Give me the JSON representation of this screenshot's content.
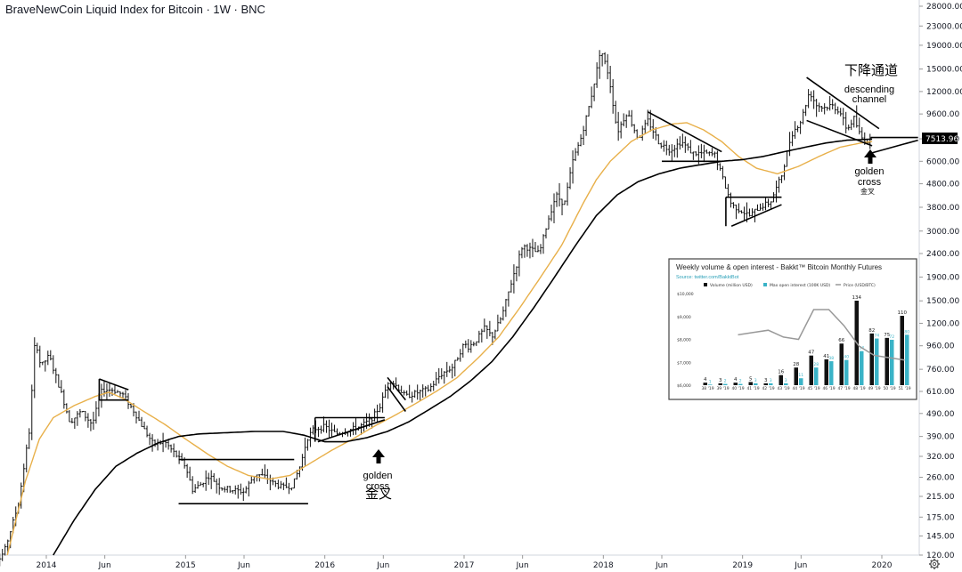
{
  "chart_data": [
    {
      "type": "candlestick",
      "title": "BraveNewCoin Liquid Index for Bitcoin · 1W · BNC",
      "y_scale": "log",
      "y_ticks": [
        120,
        145,
        175,
        215,
        260,
        320,
        390,
        490,
        610,
        760,
        960,
        1200,
        1500,
        1900,
        2400,
        3000,
        3800,
        4800,
        6000,
        7500,
        9600,
        12000,
        15000,
        19000,
        23000,
        28000
      ],
      "y_tick_labels": [
        "120.00",
        "145.00",
        "175.00",
        "215.00",
        "260.00",
        "320.00",
        "390.00",
        "490.00",
        "610.00",
        "760.00",
        "960.00",
        "1200.00",
        "1500.00",
        "1900.00",
        "2400.00",
        "3000.00",
        "3800.00",
        "4800.00",
        "6000.00",
        "7500.00",
        "9600.00",
        "12000.00",
        "15000.00",
        "19000.00",
        "23000.00",
        "28000.00"
      ],
      "x_ticks": [
        {
          "t": 2014.0,
          "label": "2014"
        },
        {
          "t": 2014.42,
          "label": "Jun"
        },
        {
          "t": 2015.0,
          "label": "2015"
        },
        {
          "t": 2015.42,
          "label": "Jun"
        },
        {
          "t": 2016.0,
          "label": "2016"
        },
        {
          "t": 2016.42,
          "label": "Jun"
        },
        {
          "t": 2017.0,
          "label": "2017"
        },
        {
          "t": 2017.42,
          "label": "Jun"
        },
        {
          "t": 2018.0,
          "label": "2018"
        },
        {
          "t": 2018.42,
          "label": "Jun"
        },
        {
          "t": 2019.0,
          "label": "2019"
        },
        {
          "t": 2019.42,
          "label": "Jun"
        },
        {
          "t": 2020.0,
          "label": "2020"
        }
      ],
      "last_price": "7513.96",
      "last_price_value": 7513.96,
      "price_path": [
        [
          2013.55,
          90
        ],
        [
          2013.7,
          125
        ],
        [
          2013.8,
          200
        ],
        [
          2013.88,
          420
        ],
        [
          2013.92,
          1050
        ],
        [
          2013.96,
          780
        ],
        [
          2014.02,
          870
        ],
        [
          2014.1,
          620
        ],
        [
          2014.17,
          450
        ],
        [
          2014.25,
          500
        ],
        [
          2014.33,
          440
        ],
        [
          2014.4,
          620
        ],
        [
          2014.48,
          620
        ],
        [
          2014.55,
          590
        ],
        [
          2014.63,
          500
        ],
        [
          2014.7,
          420
        ],
        [
          2014.77,
          360
        ],
        [
          2014.85,
          370
        ],
        [
          2014.92,
          330
        ],
        [
          2015.0,
          290
        ],
        [
          2015.05,
          230
        ],
        [
          2015.1,
          240
        ],
        [
          2015.17,
          265
        ],
        [
          2015.25,
          235
        ],
        [
          2015.33,
          230
        ],
        [
          2015.42,
          225
        ],
        [
          2015.5,
          270
        ],
        [
          2015.58,
          260
        ],
        [
          2015.63,
          245
        ],
        [
          2015.7,
          235
        ],
        [
          2015.77,
          240
        ],
        [
          2015.83,
          300
        ],
        [
          2015.87,
          380
        ],
        [
          2015.92,
          420
        ],
        [
          2016.0,
          430
        ],
        [
          2016.08,
          400
        ],
        [
          2016.17,
          415
        ],
        [
          2016.25,
          430
        ],
        [
          2016.33,
          460
        ],
        [
          2016.4,
          530
        ],
        [
          2016.46,
          690
        ],
        [
          2016.52,
          640
        ],
        [
          2016.58,
          580
        ],
        [
          2016.67,
          605
        ],
        [
          2016.75,
          625
        ],
        [
          2016.83,
          720
        ],
        [
          2016.92,
          780
        ],
        [
          2017.0,
          980
        ],
        [
          2017.03,
          950
        ],
        [
          2017.08,
          1000
        ],
        [
          2017.15,
          1150
        ],
        [
          2017.2,
          1050
        ],
        [
          2017.27,
          1280
        ],
        [
          2017.35,
          1900
        ],
        [
          2017.42,
          2600
        ],
        [
          2017.48,
          2500
        ],
        [
          2017.54,
          2400
        ],
        [
          2017.6,
          3300
        ],
        [
          2017.66,
          4300
        ],
        [
          2017.72,
          3900
        ],
        [
          2017.78,
          6000
        ],
        [
          2017.84,
          7600
        ],
        [
          2017.9,
          10500
        ],
        [
          2017.95,
          14500
        ],
        [
          2017.98,
          18500
        ],
        [
          2018.04,
          14000
        ],
        [
          2018.1,
          8000
        ],
        [
          2018.17,
          9800
        ],
        [
          2018.25,
          7500
        ],
        [
          2018.32,
          9000
        ],
        [
          2018.4,
          7200
        ],
        [
          2018.48,
          6700
        ],
        [
          2018.56,
          7300
        ],
        [
          2018.64,
          6500
        ],
        [
          2018.72,
          6500
        ],
        [
          2018.8,
          6400
        ],
        [
          2018.86,
          5000
        ],
        [
          2018.92,
          3900
        ],
        [
          2018.98,
          3700
        ],
        [
          2019.05,
          3500
        ],
        [
          2019.12,
          3800
        ],
        [
          2019.2,
          4000
        ],
        [
          2019.28,
          5200
        ],
        [
          2019.35,
          7800
        ],
        [
          2019.42,
          9000
        ],
        [
          2019.48,
          12000
        ],
        [
          2019.53,
          10500
        ],
        [
          2019.58,
          10200
        ],
        [
          2019.64,
          10500
        ],
        [
          2019.7,
          9800
        ],
        [
          2019.75,
          8200
        ],
        [
          2019.8,
          9200
        ],
        [
          2019.85,
          7600
        ],
        [
          2019.9,
          7300
        ],
        [
          2019.93,
          7513.96
        ]
      ],
      "ma_50w": [
        [
          2013.72,
          120
        ],
        [
          2013.85,
          250
        ],
        [
          2013.95,
          380
        ],
        [
          2014.05,
          470
        ],
        [
          2014.2,
          530
        ],
        [
          2014.35,
          580
        ],
        [
          2014.45,
          605
        ],
        [
          2014.55,
          570
        ],
        [
          2014.7,
          500
        ],
        [
          2014.85,
          440
        ],
        [
          2015.0,
          380
        ],
        [
          2015.15,
          330
        ],
        [
          2015.3,
          290
        ],
        [
          2015.45,
          265
        ],
        [
          2015.6,
          255
        ],
        [
          2015.75,
          265
        ],
        [
          2015.9,
          300
        ],
        [
          2016.05,
          340
        ],
        [
          2016.2,
          380
        ],
        [
          2016.35,
          430
        ],
        [
          2016.5,
          480
        ],
        [
          2016.65,
          540
        ],
        [
          2016.8,
          610
        ],
        [
          2016.95,
          700
        ],
        [
          2017.1,
          850
        ],
        [
          2017.25,
          1050
        ],
        [
          2017.4,
          1400
        ],
        [
          2017.55,
          1900
        ],
        [
          2017.7,
          2600
        ],
        [
          2017.85,
          3900
        ],
        [
          2017.95,
          5000
        ],
        [
          2018.05,
          6000
        ],
        [
          2018.2,
          7300
        ],
        [
          2018.35,
          8200
        ],
        [
          2018.5,
          8700
        ],
        [
          2018.6,
          8800
        ],
        [
          2018.72,
          8200
        ],
        [
          2018.85,
          7300
        ],
        [
          2018.97,
          6300
        ],
        [
          2019.1,
          5600
        ],
        [
          2019.25,
          5300
        ],
        [
          2019.4,
          5700
        ],
        [
          2019.55,
          6300
        ],
        [
          2019.7,
          6900
        ],
        [
          2019.85,
          7200
        ],
        [
          2019.93,
          7300
        ]
      ],
      "ma_200w": [
        [
          2014.05,
          120
        ],
        [
          2014.2,
          170
        ],
        [
          2014.35,
          230
        ],
        [
          2014.5,
          290
        ],
        [
          2014.65,
          330
        ],
        [
          2014.8,
          365
        ],
        [
          2014.95,
          390
        ],
        [
          2015.1,
          400
        ],
        [
          2015.3,
          405
        ],
        [
          2015.5,
          410
        ],
        [
          2015.7,
          410
        ],
        [
          2015.85,
          395
        ],
        [
          2016.0,
          370
        ],
        [
          2016.15,
          370
        ],
        [
          2016.3,
          385
        ],
        [
          2016.45,
          410
        ],
        [
          2016.6,
          450
        ],
        [
          2016.75,
          510
        ],
        [
          2016.9,
          580
        ],
        [
          2017.05,
          680
        ],
        [
          2017.2,
          820
        ],
        [
          2017.35,
          1050
        ],
        [
          2017.5,
          1400
        ],
        [
          2017.65,
          1900
        ],
        [
          2017.8,
          2600
        ],
        [
          2017.95,
          3500
        ],
        [
          2018.1,
          4300
        ],
        [
          2018.25,
          4900
        ],
        [
          2018.4,
          5300
        ],
        [
          2018.55,
          5600
        ],
        [
          2018.7,
          5800
        ],
        [
          2018.85,
          6000
        ],
        [
          2019.0,
          6100
        ],
        [
          2019.15,
          6300
        ],
        [
          2019.3,
          6600
        ],
        [
          2019.45,
          6900
        ],
        [
          2019.6,
          7200
        ],
        [
          2019.75,
          7400
        ],
        [
          2019.93,
          7480
        ]
      ],
      "annotations": [
        {
          "id": "golden-cross-2016",
          "lines": [
            "golden",
            "cross"
          ],
          "cn": "金叉",
          "t": 2016.42,
          "price": 350
        },
        {
          "id": "golden-cross-2019",
          "lines": [
            "golden",
            "cross"
          ],
          "cn": "金叉",
          "t": 2019.93,
          "price": 6800
        },
        {
          "id": "descending-channel",
          "cn": "下降通道",
          "lines": [
            "descending",
            "channel"
          ]
        }
      ]
    },
    {
      "type": "bar",
      "title": "Weekly volume & open interest - Bakkt™ Bitcoin Monthly Futures",
      "source": "Source: twitter.com/BakktBot",
      "legend": [
        "Volume (million USD)",
        "Max open interest (100K USD)",
        "Price (USD/BTC)"
      ],
      "legend_colors": [
        "#111111",
        "#3ab3c7",
        "#999999"
      ],
      "y_tick_labels": [
        "$10,000",
        "$9,000",
        "$8,000",
        "$7,000",
        "$6,000"
      ],
      "y_ticks": [
        10000,
        9000,
        8000,
        7000,
        6000
      ],
      "categories": [
        "38 '19",
        "39 '19",
        "40 '19",
        "41 '19",
        "42 '19",
        "43 '19",
        "44 '19",
        "45 '19",
        "46 '19",
        "47 '19",
        "48 '19",
        "49 '19",
        "50 '19",
        "51 '19"
      ],
      "series": [
        {
          "name": "Volume (million USD)",
          "values": [
            4,
            3,
            4,
            5,
            3,
            16,
            28,
            47,
            41,
            66,
            134,
            82,
            75,
            110
          ]
        },
        {
          "name": "Max open interest (100K USD)",
          "values": [
            1,
            2,
            2,
            3,
            3,
            3,
            11,
            28,
            38,
            40,
            54,
            74,
            72,
            80
          ]
        },
        {
          "name": "Price (USD/BTC)",
          "values": [
            null,
            null,
            8200,
            8300,
            8400,
            8100,
            8000,
            9300,
            9300,
            8600,
            7700,
            7300,
            7200,
            7100
          ]
        }
      ],
      "volume_labels": [
        "4",
        "3",
        "4",
        "5",
        "3",
        "16",
        "28",
        "47",
        "41",
        "66",
        "134",
        "82",
        "75",
        "110"
      ],
      "oi_labels": [
        "1",
        "2",
        "2",
        "3",
        "3",
        "3",
        "11",
        "28",
        "38",
        "40",
        "54",
        "74",
        "72",
        "80"
      ]
    }
  ],
  "colors": {
    "candle": "#111111",
    "ma_50w": "#e8b04a",
    "ma_200w": "#000000",
    "channel": "#000000",
    "grid_axis": "#e0e3eb",
    "volume_bar": "#111111",
    "oi_bar": "#3ab3c7",
    "price_line": "#999999"
  },
  "settings_icon": "gear-icon"
}
